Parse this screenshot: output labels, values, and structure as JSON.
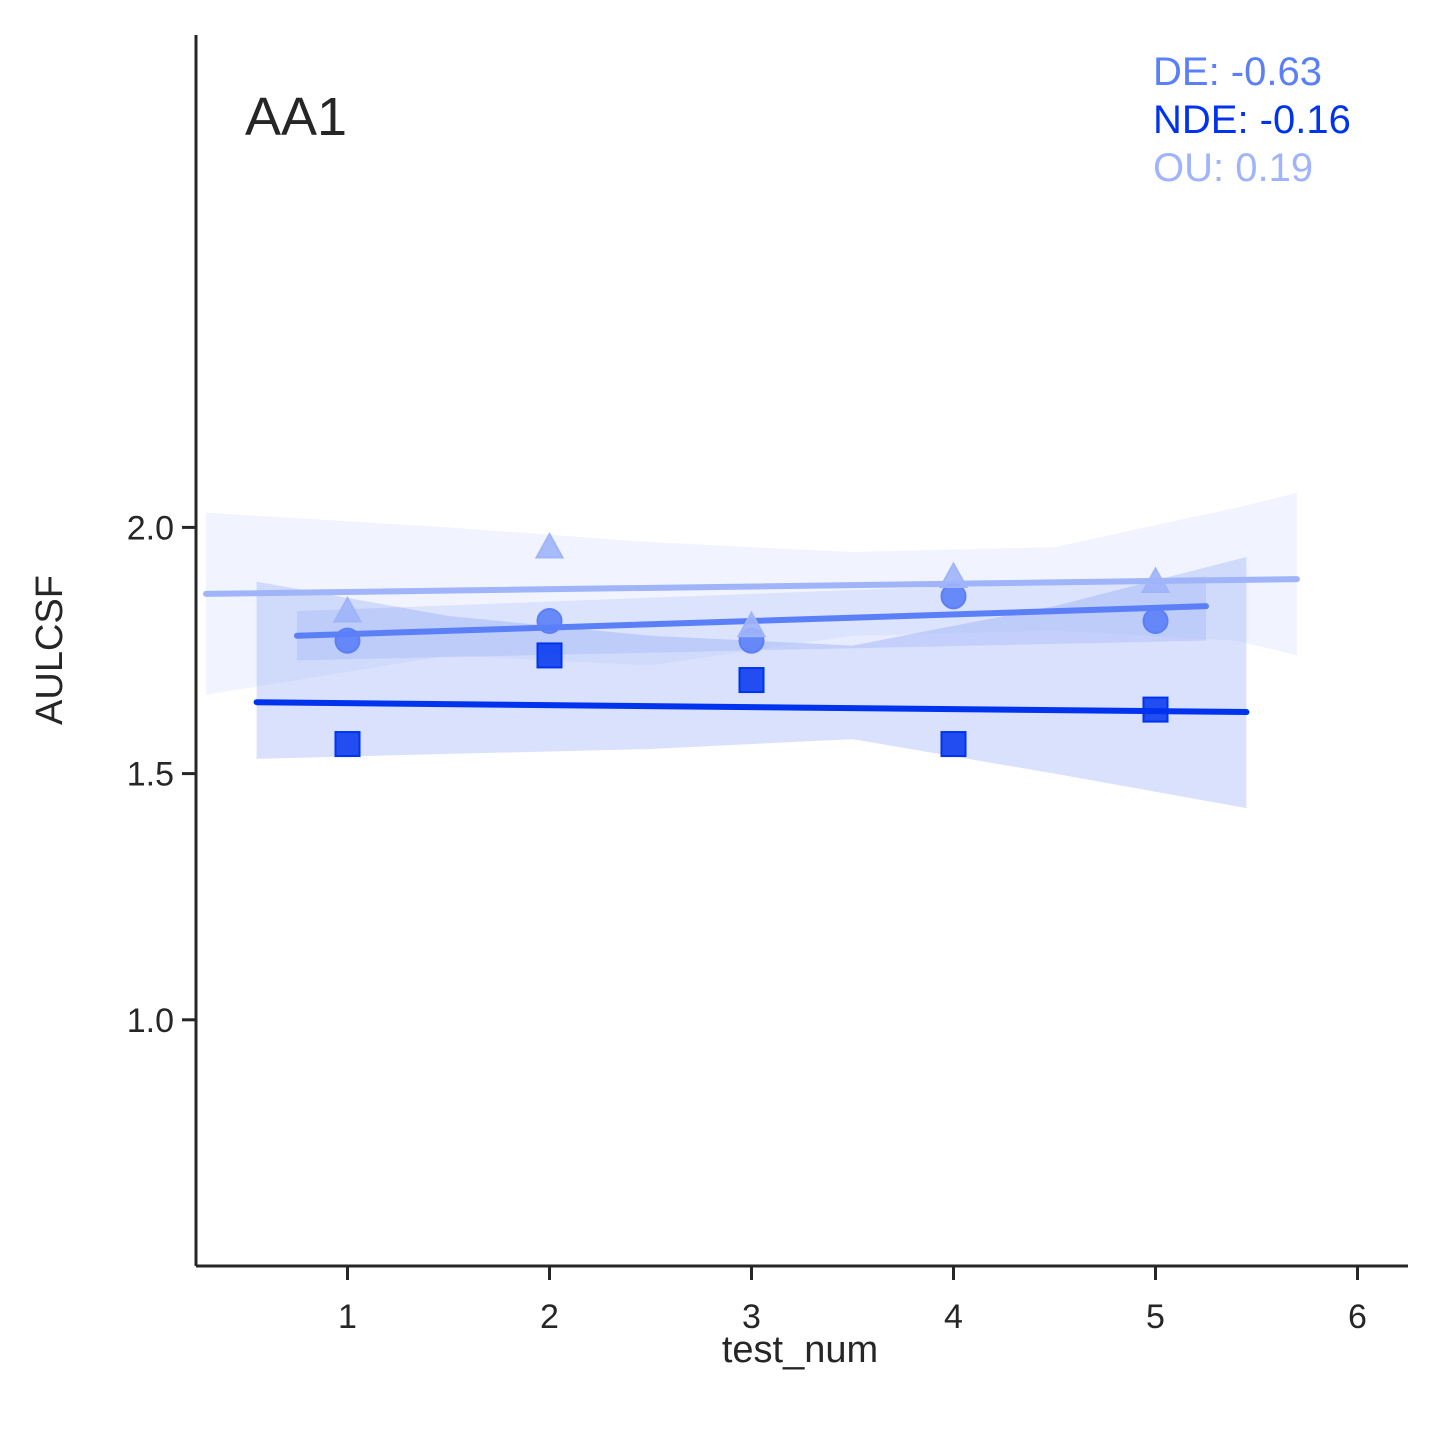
{
  "chart_data": {
    "type": "scatter",
    "title": "AA1",
    "xlabel": "test_num",
    "ylabel": "AULCSF",
    "xlim": [
      0.25,
      6.25
    ],
    "ylim": [
      0.5,
      3.0
    ],
    "xticks": [
      1,
      2,
      3,
      4,
      5,
      6
    ],
    "xtick_labels": [
      "1",
      "2",
      "3",
      "4",
      "5",
      "6"
    ],
    "yticks": [
      1.0,
      1.5,
      2.0
    ],
    "ytick_labels": [
      "1.0",
      "1.5",
      "2.0"
    ],
    "grid": false,
    "series": [
      {
        "name": "DE",
        "marker": "circle",
        "color": "#5b7ff7",
        "x": [
          1,
          2,
          3,
          4,
          5
        ],
        "y": [
          1.77,
          1.81,
          1.77,
          1.86,
          1.81
        ],
        "fit": {
          "x": [
            0.75,
            5.25
          ],
          "y": [
            1.78,
            1.84
          ]
        },
        "ci": {
          "x": [
            0.75,
            5.25
          ],
          "lower": [
            1.73,
            1.77
          ],
          "upper": [
            1.83,
            1.9
          ]
        }
      },
      {
        "name": "NDE",
        "marker": "square",
        "color": "#0033ee",
        "x": [
          1,
          2,
          3,
          4,
          5
        ],
        "y": [
          1.56,
          1.74,
          1.69,
          1.56,
          1.63
        ],
        "fit": {
          "x": [
            0.55,
            5.45
          ],
          "y": [
            1.645,
            1.625
          ]
        },
        "ci": {
          "x": [
            0.55,
            1.5,
            2.5,
            3.5,
            4.5,
            5.45
          ],
          "lower": [
            1.53,
            1.54,
            1.55,
            1.57,
            1.5,
            1.43
          ],
          "upper": [
            1.89,
            1.82,
            1.78,
            1.76,
            1.84,
            1.94
          ]
        }
      },
      {
        "name": "OU",
        "marker": "triangle",
        "color": "#9fb4f9",
        "x": [
          1,
          2,
          3,
          4,
          5
        ],
        "y": [
          1.83,
          1.96,
          1.8,
          1.9,
          1.89
        ],
        "fit": {
          "x": [
            0.3,
            5.7
          ],
          "y": [
            1.865,
            1.895
          ]
        },
        "ci": {
          "x": [
            0.3,
            1.5,
            2.5,
            3.5,
            4.5,
            5.4,
            5.7
          ],
          "lower": [
            1.66,
            1.74,
            1.72,
            1.78,
            1.79,
            1.77,
            1.74
          ],
          "upper": [
            2.03,
            2.0,
            1.97,
            1.95,
            1.96,
            2.04,
            2.07
          ]
        }
      }
    ],
    "annotations": [
      {
        "text": "DE: -0.63",
        "color": "#5b7ff7"
      },
      {
        "text": "NDE: -0.16",
        "color": "#0033ee"
      },
      {
        "text": "OU: 0.19",
        "color": "#9fb4f9"
      }
    ]
  }
}
